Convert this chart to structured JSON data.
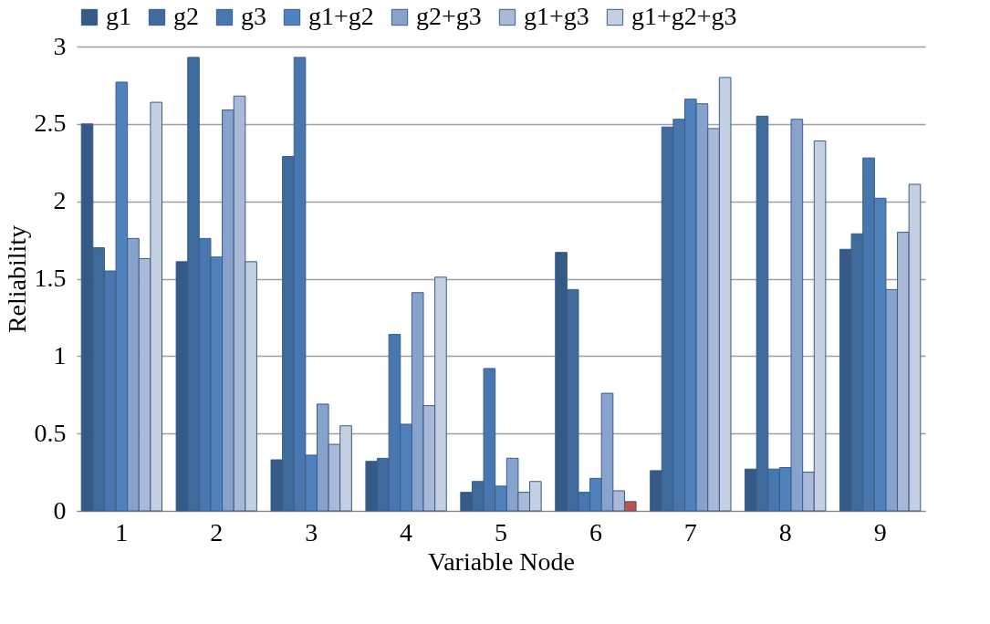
{
  "chart_data": {
    "type": "bar",
    "xlabel": "Variable Node",
    "ylabel": "Reliability",
    "categories": [
      "1",
      "2",
      "3",
      "4",
      "5",
      "6",
      "7",
      "8",
      "9"
    ],
    "series": [
      {
        "name": "g1",
        "color": "#355a86",
        "values": [
          2.5,
          1.61,
          0.33,
          0.32,
          0.12,
          1.67,
          0.26,
          0.27,
          1.69
        ]
      },
      {
        "name": "g2",
        "color": "#3f6a9c",
        "values": [
          1.7,
          2.93,
          2.29,
          0.34,
          0.19,
          1.43,
          2.48,
          2.55,
          1.79
        ]
      },
      {
        "name": "g3",
        "color": "#4876ae",
        "values": [
          1.55,
          1.76,
          2.93,
          1.14,
          0.92,
          0.12,
          2.53,
          0.27,
          2.28
        ]
      },
      {
        "name": "g1+g2",
        "color": "#4f81bd",
        "values": [
          2.77,
          1.64,
          0.36,
          0.56,
          0.16,
          0.21,
          2.66,
          0.28,
          2.02
        ]
      },
      {
        "name": "g2+g3",
        "color": "#87a2cb",
        "values": [
          1.76,
          2.59,
          0.69,
          1.41,
          0.34,
          0.76,
          2.63,
          2.53,
          1.43
        ]
      },
      {
        "name": "g1+g3",
        "color": "#aab9d7",
        "values": [
          1.63,
          2.68,
          0.43,
          0.68,
          0.12,
          0.13,
          2.47,
          0.25,
          1.8
        ]
      },
      {
        "name": "g1+g2+g3",
        "color": "#c4cfe2",
        "colors": [
          "#c4cfe2",
          "#c4cfe2",
          "#c4cfe2",
          "#c4cfe2",
          "#c4cfe2",
          "#c0504d",
          "#c4cfe2",
          "#c4cfe2",
          "#c4cfe2"
        ],
        "values": [
          2.64,
          1.61,
          0.55,
          1.51,
          0.19,
          0.06,
          2.8,
          2.39,
          2.11
        ]
      }
    ],
    "ylim": [
      0,
      3
    ],
    "yticks": [
      0,
      0.5,
      1,
      1.5,
      2,
      2.5,
      3
    ],
    "grid": "y",
    "legend": "top"
  }
}
